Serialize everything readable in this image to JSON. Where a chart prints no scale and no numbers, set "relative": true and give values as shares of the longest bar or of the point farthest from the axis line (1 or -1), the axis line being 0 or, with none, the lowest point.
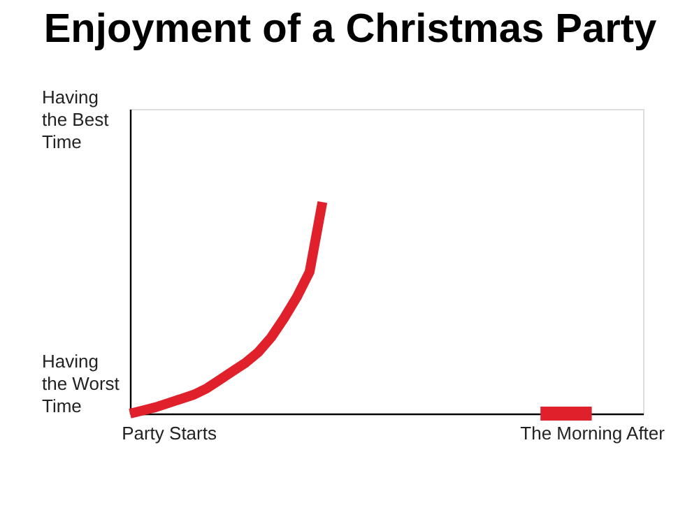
{
  "chart_data": {
    "type": "line",
    "title": "Enjoyment of a Christmas Party",
    "relative": true,
    "categories": [
      null,
      null,
      null,
      "Party Starts",
      null,
      null,
      null,
      null,
      null,
      null,
      null,
      null,
      null,
      null,
      null,
      null,
      null,
      null,
      null,
      null,
      null,
      null,
      null,
      null,
      null,
      null,
      null,
      null,
      null,
      null,
      null,
      null,
      null,
      null,
      null,
      null,
      "The Morning After",
      null,
      null,
      null,
      null
    ],
    "annotations": [
      "Having the Best Time",
      "Having the Worst Time"
    ],
    "series": [
      {
        "color": "#e0202a",
        "values": [
          0,
          0.015,
          0.03,
          0.05,
          0.07,
          0.09,
          0.12,
          0.16,
          0.2,
          0.24,
          0.29,
          0.36,
          0.45,
          0.55,
          0.67,
          1,
          null,
          null,
          null,
          null,
          null,
          null,
          null,
          null,
          null,
          null,
          null,
          null,
          null,
          null,
          null,
          null,
          null,
          null,
          null,
          null,
          null,
          null,
          null,
          null,
          null
        ]
      },
      {
        "color": "#e0202a",
        "values": [
          null,
          null,
          null,
          null,
          null,
          null,
          null,
          null,
          null,
          null,
          null,
          null,
          null,
          null,
          null,
          null,
          null,
          null,
          null,
          null,
          null,
          null,
          null,
          null,
          null,
          null,
          null,
          null,
          null,
          null,
          null,
          null,
          0,
          0,
          0,
          0,
          0,
          null,
          null,
          null,
          null
        ]
      }
    ],
    "grid": false,
    "marker": "none",
    "line_style": "solid"
  }
}
